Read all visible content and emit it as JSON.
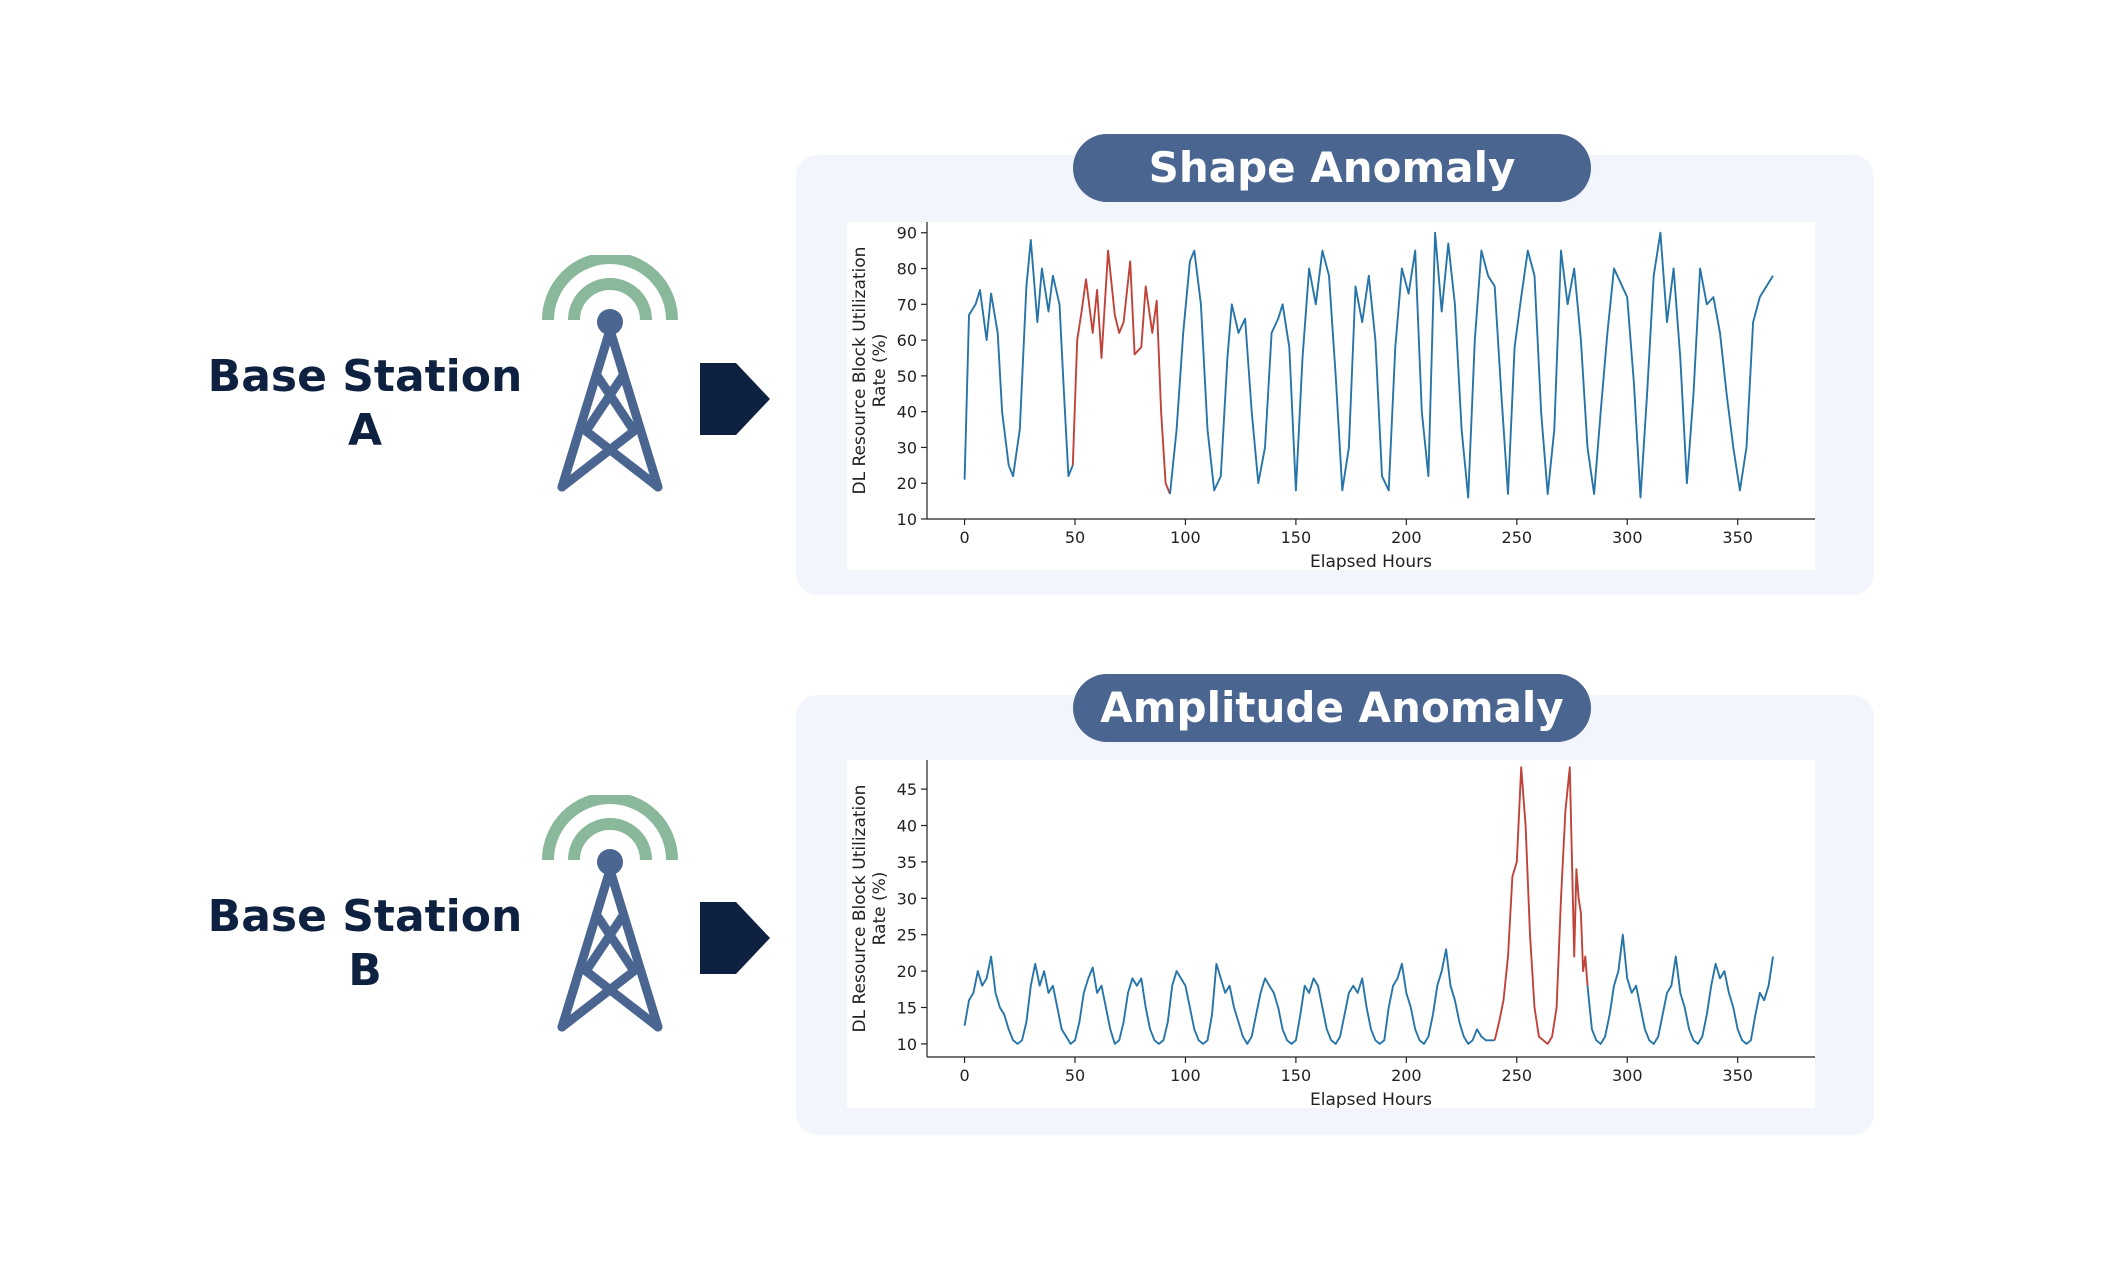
{
  "stations": [
    {
      "label_line1": "Base Station",
      "label_line2": "A"
    },
    {
      "label_line1": "Base Station",
      "label_line2": "B"
    }
  ],
  "colors": {
    "normal_line": "#2775a8",
    "anomaly_line": "#c0433a",
    "pill": "#4a6590",
    "panel": "#f2f5fc",
    "tower": "#4a6590",
    "signal": "#8ab89a",
    "arrow": "#0f2140"
  },
  "icons": {
    "tower": "cell-tower-icon",
    "arrow": "arrow-right-icon"
  },
  "chart_data": [
    {
      "type": "line",
      "title": "Shape Anomaly",
      "xlabel": "Elapsed Hours",
      "ylabel": "DL Resource Block Utilization Rate (%)",
      "xlim": [
        -17,
        385
      ],
      "ylim": [
        10,
        93
      ],
      "xticks": [
        0,
        50,
        100,
        150,
        200,
        250,
        300,
        350
      ],
      "yticks": [
        10,
        20,
        30,
        40,
        50,
        60,
        70,
        80,
        90
      ],
      "series": [
        {
          "x": [
            0,
            2,
            5,
            7,
            10,
            12,
            15,
            17,
            20,
            22,
            25,
            28,
            30,
            33,
            35,
            38,
            40,
            43,
            45,
            47,
            49
          ],
          "values": [
            21,
            67,
            70,
            74,
            60,
            73,
            62,
            40,
            25,
            22,
            35,
            75,
            88,
            65,
            80,
            68,
            78,
            70,
            45,
            22,
            25
          ],
          "anomaly": false
        },
        {
          "x": [
            49,
            51,
            53,
            55,
            58,
            60,
            62,
            65,
            68,
            70,
            72,
            75,
            77,
            80,
            82,
            85,
            87,
            89,
            91,
            93
          ],
          "values": [
            25,
            60,
            68,
            77,
            62,
            74,
            55,
            85,
            67,
            62,
            65,
            82,
            56,
            58,
            75,
            62,
            71,
            40,
            20,
            17
          ],
          "anomaly": true
        },
        {
          "x": [
            93,
            96,
            99,
            102,
            104,
            107,
            110,
            113,
            116,
            119,
            121,
            124,
            127,
            130,
            133,
            136,
            139,
            142,
            144,
            147,
            150,
            153,
            156,
            159,
            162,
            165,
            168,
            171,
            174,
            177,
            180,
            183,
            186,
            189,
            192,
            195,
            198,
            201,
            204,
            207,
            210,
            213,
            216,
            219,
            222,
            225,
            228,
            231,
            234,
            237,
            240,
            243,
            246,
            249,
            252,
            255,
            258,
            261,
            264,
            267,
            270,
            273,
            276,
            279,
            282,
            285,
            288,
            291,
            294,
            297,
            300,
            303,
            306,
            309,
            312,
            315,
            318,
            321,
            324,
            327,
            330,
            333,
            336,
            339,
            342,
            345,
            348,
            351,
            354,
            357,
            360,
            363,
            366
          ],
          "values": [
            17,
            35,
            62,
            82,
            85,
            70,
            35,
            18,
            22,
            55,
            70,
            62,
            66,
            40,
            20,
            30,
            62,
            66,
            70,
            58,
            18,
            55,
            80,
            70,
            85,
            78,
            50,
            18,
            30,
            75,
            65,
            78,
            60,
            22,
            18,
            58,
            80,
            73,
            85,
            40,
            22,
            90,
            68,
            87,
            70,
            35,
            16,
            60,
            85,
            78,
            75,
            45,
            17,
            58,
            72,
            85,
            78,
            40,
            17,
            35,
            85,
            70,
            80,
            60,
            30,
            17,
            40,
            62,
            80,
            76,
            72,
            48,
            16,
            45,
            78,
            90,
            65,
            80,
            55,
            20,
            45,
            80,
            70,
            72,
            62,
            45,
            30,
            18,
            30,
            65,
            72,
            75,
            78
          ],
          "anomaly": false
        }
      ]
    },
    {
      "type": "line",
      "title": "Amplitude Anomaly",
      "xlabel": "Elapsed Hours",
      "ylabel": "DL Resource Block Utilization Rate (%)",
      "xlim": [
        -17,
        385
      ],
      "ylim": [
        8.2,
        49
      ],
      "xticks": [
        0,
        50,
        100,
        150,
        200,
        250,
        300,
        350
      ],
      "yticks": [
        10,
        15,
        20,
        25,
        30,
        35,
        40,
        45
      ],
      "series": [
        {
          "x": [
            0,
            2,
            4,
            6,
            8,
            10,
            12,
            14,
            16,
            18,
            20,
            22,
            24,
            26,
            28,
            30,
            32,
            34,
            36,
            38,
            40,
            42,
            44,
            46,
            48,
            50,
            52,
            54,
            56,
            58,
            60,
            62,
            64,
            66,
            68,
            70,
            72,
            74,
            76,
            78,
            80,
            82,
            84,
            86,
            88,
            90,
            92,
            94,
            96,
            98,
            100,
            102,
            104,
            106,
            108,
            110,
            112,
            114,
            116,
            118,
            120,
            122,
            124,
            126,
            128,
            130,
            132,
            134,
            136,
            138,
            140,
            142,
            144,
            146,
            148,
            150,
            152,
            154,
            156,
            158,
            160,
            162,
            164,
            166,
            168,
            170,
            172,
            174,
            176,
            178,
            180,
            182,
            184,
            186,
            188,
            190,
            192,
            194,
            196,
            198,
            200,
            202,
            204,
            206,
            208,
            210,
            212,
            214,
            216,
            218,
            220,
            222,
            224,
            226,
            228,
            230,
            232,
            234,
            236,
            238,
            240
          ],
          "values": [
            12.5,
            16,
            17,
            20,
            18,
            19,
            22,
            17,
            15,
            14,
            12,
            10.5,
            10,
            10.5,
            13,
            18,
            21,
            18,
            20,
            17,
            18,
            15,
            12,
            11,
            10,
            10.5,
            13,
            17,
            19,
            20.5,
            17,
            18,
            15,
            12,
            10,
            10.5,
            13,
            17,
            19,
            18,
            19,
            15,
            12,
            10.5,
            10,
            10.5,
            13,
            18,
            20,
            19,
            18,
            15,
            12,
            10.5,
            10,
            10.5,
            14,
            21,
            19,
            17,
            18,
            15,
            13,
            11,
            10,
            11,
            14,
            17,
            19,
            18,
            17,
            15,
            12,
            10.5,
            10,
            10.5,
            14,
            18,
            17,
            19,
            18,
            15,
            12,
            10.5,
            10,
            11,
            14,
            17,
            18,
            17,
            19,
            15,
            12,
            10.5,
            10,
            10.5,
            15,
            18,
            19,
            21,
            17,
            15,
            12,
            10.5,
            10,
            11,
            14,
            18,
            20,
            23,
            18,
            16,
            13,
            11,
            10,
            10.5,
            12,
            11,
            10.5,
            10.5,
            10.5
          ],
          "anomaly": false
        },
        {
          "x": [
            240,
            242,
            244,
            246,
            248,
            250,
            252,
            254,
            256,
            258,
            260,
            262,
            264,
            266,
            268,
            270,
            272,
            274,
            276,
            277,
            278,
            279,
            280,
            281,
            282
          ],
          "values": [
            10.5,
            13,
            16,
            22,
            33,
            35,
            48,
            40,
            25,
            15,
            11,
            10.5,
            10,
            11,
            15,
            30,
            42,
            48,
            22,
            34,
            30,
            28,
            20,
            22,
            18
          ],
          "anomaly": true
        },
        {
          "x": [
            282,
            284,
            286,
            288,
            290,
            292,
            294,
            296,
            298,
            300,
            302,
            304,
            306,
            308,
            310,
            312,
            314,
            316,
            318,
            320,
            322,
            324,
            326,
            328,
            330,
            332,
            334,
            336,
            338,
            340,
            342,
            344,
            346,
            348,
            350,
            352,
            354,
            356,
            358,
            360,
            362,
            364,
            366
          ],
          "values": [
            18,
            12,
            10.5,
            10,
            11,
            14,
            18,
            20,
            25,
            19,
            17,
            18,
            15,
            12,
            10.5,
            10,
            11,
            14,
            17,
            18,
            22,
            17,
            15,
            12,
            10.5,
            10,
            11,
            14,
            18,
            21,
            19,
            20,
            17,
            15,
            12,
            10.5,
            10,
            10.5,
            14,
            17,
            16,
            18,
            22
          ],
          "anomaly": false
        }
      ]
    }
  ]
}
